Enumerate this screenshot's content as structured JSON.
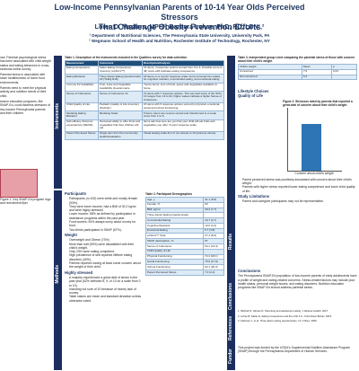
{
  "header": {
    "title": [
      "Low-Income Pennsylvanian Parents of 10-14 Year Olds Perceived Stressors",
      "That Challenge Obesity Prevention Efforts"
    ],
    "authors": "Loren D. Masters, MPH¹; Barbara Lohse, PhD, RD, LDN¹,²",
    "affiliations": [
      "¹ Department of Nutritional Sciences, The Pennsylvania State University, University Park, PA",
      "² Wegmans School of Health and Nutrition, Rochester Institute of Technology, Rochester, NY"
    ]
  },
  "left_column": {
    "paragraphs": [
      "ose: Parental psychological stress has been associated with child weight status and eating behaviors in cross-sectional online survey.",
      "Parental stress is associated with lower healthfulness of home food environments.",
      "Parents need to meet the physical activity and nutrition needs of their child.",
      "ession education programs, like SNAP-Ed, could address stressors of low-income Pennsylvania parents and their children."
    ],
    "figure_caption": "Figure 1. Key SNAP-Ed program logo and recruitment flyer"
  },
  "side_labels": {
    "left": [
      "Instruments",
      "Methods"
    ],
    "right": [
      "Results",
      "Conclusions",
      "References",
      "Funder"
    ]
  },
  "table1": {
    "caption": "Table 1. Description of the instruments included in the Qualtrics survey for data collection",
    "columns": [
      "Measurement",
      "Instrument",
      "Description/Analysis"
    ],
    "rows": [
      [
        "Eating Competence",
        "Satter Eating Competence Inventory (ecSI2.0™)",
        "16 items; 4 response options scored from 0 to 3. Possible score 0-48; score ≥32 indicates eating competence."
      ],
      [
        "Eating Behavior",
        "Three Factor Eating Questionnaire 18 (TFEQ-R18)",
        "18 items on a 4-point response scale; items summed into scales for cognitive restraint, uncontrolled eating, and emotional eating."
      ],
      [
        "In-home FV availability",
        "Fruit, Juice and Vegetable Availability Questionnaire",
        "Yes/no items; sum of fruits, juices and vegetables available at home."
      ],
      [
        "Sense of Coherence",
        "Sense of Coherence 13",
        "13 items with 7 response options. The summed score of the SOC-13 ranges from 13 to 91; higher values indicate a higher Sense of Coherence."
      ],
      [
        "Child Quality of Life",
        "Pediatric Quality of Life Inventory (PedsQL)",
        "15 items with 5 response options scored for physical, emotional, social and school functioning."
      ],
      [
        "Modeling Eating Behavior",
        "Modeling Scale",
        "5 items; items are reverse scored and transformed to a mean score from 1 to 5."
      ],
      [
        "Self-efficacy Outcome expectancies (SE/OE)",
        "Perceived ability to offer fruits and vegetables that their children will eat",
        "Items ask how sure are you that your child will eat fruits and vegetables you offer; 5-point response scale."
      ],
      [
        "Parent Perceived Stress",
        "Single item from the Community Health Evaluation",
        "Visual analog scale from 0 (no stress) to 10 (extreme stress)."
      ]
    ]
  },
  "participants": {
    "heading": "Participants",
    "bullets": [
      "Participants (n=100) were white and mostly female (93%).",
      "They were lower income, had a BMI of 30.2 kg/m² and were highly stressed.",
      "Lower income: 68% as defined by participation in assistance programs within the past year.",
      "Food worries: 54% always worry about money for food.",
      "Two-thirds participated in SNAP (67%)."
    ]
  },
  "weight": {
    "heading": "Weight",
    "bullets": [
      "Overweight and Obese (73%)",
      "More than half (53%) were dissatisfied with their child's weight.",
      "Only 23% were eating competent.",
      "High prevalence of self-reported lifetime eating disorders (40%).",
      "Parents reported having at least some concern about the weight of their child."
    ]
  },
  "table2": {
    "caption": "Table 2. Participant Demographics",
    "rows": [
      [
        "Age, y",
        "41.1 (5.8)"
      ],
      [
        "Female, %",
        "93"
      ],
      [
        "BMI, kg/m²",
        "30.2 (7.7)"
      ],
      [
        "Three-Factor Eating Questionnaire",
        ""
      ],
      [
        "Uncontrolled Eating",
        "16.7 (4.7)"
      ],
      [
        "Cognitive Restraint",
        "10.0 (4.4)"
      ],
      [
        "Emotional Eating",
        "5.7 (4.8)"
      ],
      [
        "ecSI2.0™ Total",
        "27.4 (8.3)"
      ],
      [
        "SNAP participation, %",
        "67"
      ],
      [
        "Sense of Coherence",
        "54.1 (13.3)"
      ],
      [
        "Child Quality of Life",
        ""
      ],
      [
        "Physical Functioning",
        "72.4 (18.1)"
      ],
      [
        "Social Functioning",
        "75.6 (17.9)"
      ],
      [
        "School Functioning",
        "62.1 (20.3)"
      ],
      [
        "Parent Perceived Stress",
        "7.0 (2.2)"
      ]
    ]
  },
  "highly_stressed": {
    "heading": "Highly stressed",
    "bullets": [
      "A majority experienced a great deal of stress in the past year (62% selected 8, 9, or 10 on a scale from 0 to 10).",
      "Including not sure of 10 because of money lack of money.",
      "Table values are mean and standard deviation unless otherwise noted."
    ]
  },
  "table3": {
    "caption": "Table 3. Independent group t-test comparing the parental stress of those with concern about their child's weight",
    "rows": [
      [
        "Child's weight",
        "Mean",
        "p"
      ],
      [
        "Concerned",
        "7.6",
        "0.01"
      ],
      [
        "Not concerned",
        "6.3",
        ""
      ]
    ]
  },
  "figure2": {
    "caption": "Figure 2. Stressors rated by parents that reported a great deal of concern about their child's weight",
    "label": "Concern about child's weight"
  },
  "results_text": [
    "Lifestyle Choices",
    "Quality of Life",
    "Parent perceived stress was positively associated with concern about their child's weight.",
    "Parents with higher stress reported lower eating competence and lower child quality of life."
  ],
  "limitations": {
    "heading": "Study Limitations",
    "bullets": [
      "Parent and caregiver participants may not be representative."
    ]
  },
  "conclusions": {
    "heading": "Conclusions",
    "text": "The Pennsylvania SNAP-Ed population of low-income parents of early adolescents have a profile of weight and eating-related concerns. Stress-related factors may include poor health status, personal weight issues, and eating disorders. Nutrition education programs like SNAP-Ed should address parental stress."
  },
  "references": [
    "1. Mitchell S, Gilman D. Parenting and adolescent eating. J Adolesc Health. 2017.",
    "2. Lohse B, Satter E. Eating competence and the ecSI 2.0. J Nutr Educ Behav. 2015.",
    "3. Karlsson J, et al. Three-factor eating questionnaire. Int J Obes. 2000."
  ],
  "funder": "This project was funded by the USDA's Supplemental Nutrition Assistance Program (SNAP) through the Pennsylvania Department of Human Services."
}
